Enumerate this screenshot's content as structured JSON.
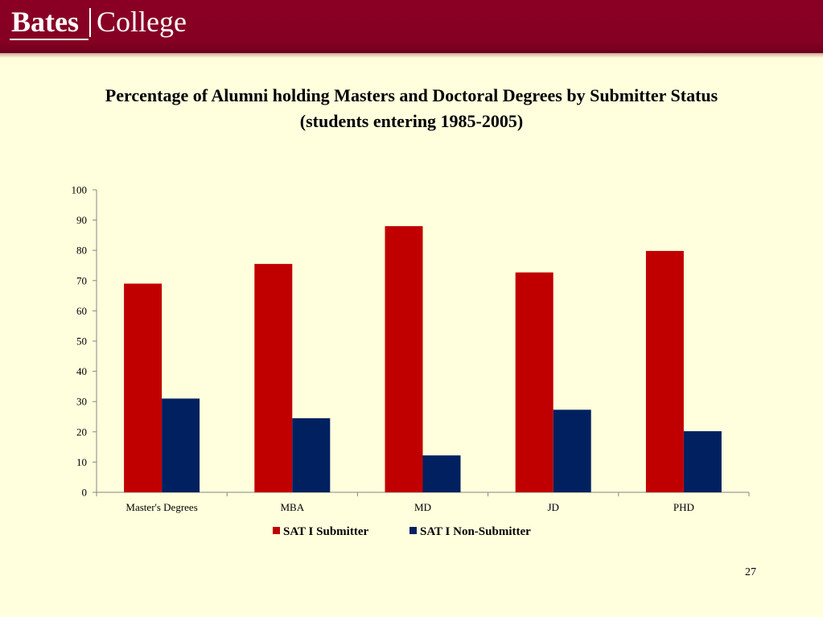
{
  "header": {
    "logo_bates": "Bates",
    "logo_college": "College",
    "bg_color": "#850023"
  },
  "title": {
    "line1": "Percentage of Alumni holding Masters and Doctoral Degrees by Submitter Status",
    "line2": "(students entering 1985-2005)"
  },
  "chart_data": {
    "type": "bar",
    "title": "Percentage of Alumni holding Masters and Doctoral Degrees by Submitter Status (students entering 1985-2005)",
    "xlabel": "",
    "ylabel": "",
    "categories": [
      "Master's Degrees",
      "MBA",
      "MD",
      "JD",
      "PHD"
    ],
    "series": [
      {
        "name": "SAT I Submitter",
        "color": "#c00000",
        "values": [
          69,
          75.5,
          88,
          72.7,
          79.8
        ]
      },
      {
        "name": "SAT I Non-Submitter",
        "color": "#002060",
        "values": [
          31,
          24.5,
          12.2,
          27.3,
          20.2
        ]
      }
    ],
    "ylim": [
      0,
      100
    ],
    "yticks": [
      0,
      10,
      20,
      30,
      40,
      50,
      60,
      70,
      80,
      90,
      100
    ],
    "grid": false,
    "legend": "bottom"
  },
  "page_number": "27"
}
